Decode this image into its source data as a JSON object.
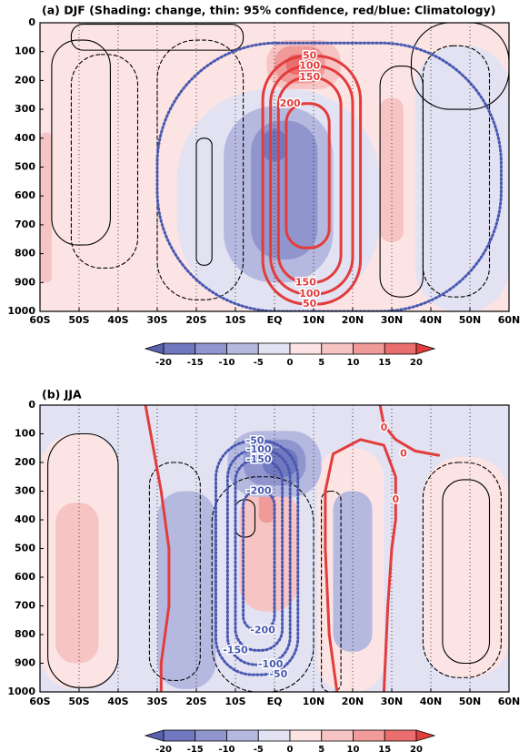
{
  "chart_data": [
    {
      "type": "contour",
      "title": "(a) DJF (Shading: change, thin: 95% confidence, red/blue: Climatology)",
      "xlim": [
        -60,
        60
      ],
      "xticks": [
        {
          "value": -60,
          "label": "60S"
        },
        {
          "value": -50,
          "label": "50S"
        },
        {
          "value": -40,
          "label": "40S"
        },
        {
          "value": -30,
          "label": "30S"
        },
        {
          "value": -20,
          "label": "20S"
        },
        {
          "value": -10,
          "label": "10S"
        },
        {
          "value": 0,
          "label": "EQ"
        },
        {
          "value": 10,
          "label": "10N"
        },
        {
          "value": 20,
          "label": "20N"
        },
        {
          "value": 30,
          "label": "30N"
        },
        {
          "value": 40,
          "label": "40N"
        },
        {
          "value": 50,
          "label": "50N"
        },
        {
          "value": 60,
          "label": "60N"
        }
      ],
      "ylim": [
        1000,
        0
      ],
      "yticks": [
        0,
        100,
        200,
        300,
        400,
        500,
        600,
        700,
        800,
        900,
        1000
      ],
      "grid": true,
      "colorbar": {
        "ticks": [
          -20,
          -15,
          -10,
          -5,
          0,
          5,
          10,
          15,
          20
        ],
        "colors": [
          "#5a62b0",
          "#7078c0",
          "#9096cd",
          "#b6b9df",
          "#e2e2f2",
          "#fce4e4",
          "#f7c4c4",
          "#f19a9a",
          "#eb6e6e",
          "#e23c3c"
        ]
      },
      "shading": [
        {
          "shape": "rect",
          "value": 2,
          "lat": [
            -60,
            60
          ],
          "p": [
            0,
            1000
          ]
        },
        {
          "shape": "blob",
          "value": -2,
          "lat": [
            -25,
            27
          ],
          "p": [
            230,
            1000
          ]
        },
        {
          "shape": "blob",
          "value": -2,
          "lat": [
            36,
            60
          ],
          "p": [
            80,
            1000
          ]
        },
        {
          "shape": "blob",
          "value": -7,
          "lat": [
            -13,
            15
          ],
          "p": [
            290,
            900
          ]
        },
        {
          "shape": "blob",
          "value": -12,
          "lat": [
            -6,
            11
          ],
          "p": [
            340,
            820
          ]
        },
        {
          "shape": "blob",
          "value": -17,
          "lat": [
            -3,
            3
          ],
          "p": [
            370,
            480
          ]
        },
        {
          "shape": "blob",
          "value": 7,
          "lat": [
            -60,
            -57
          ],
          "p": [
            380,
            900
          ]
        },
        {
          "shape": "blob",
          "value": 7,
          "lat": [
            27,
            33
          ],
          "p": [
            260,
            760
          ]
        },
        {
          "shape": "blob",
          "value": 7,
          "lat": [
            -2,
            17
          ],
          "p": [
            60,
            230
          ]
        },
        {
          "shape": "blob",
          "value": 12,
          "lat": [
            0,
            13
          ],
          "p": [
            80,
            210
          ]
        },
        {
          "shape": "blob",
          "value": 17,
          "lat": [
            3,
            10
          ],
          "p": [
            110,
            180
          ]
        }
      ],
      "confidence": [
        {
          "style": "solid",
          "shape": "loop",
          "lat": [
            -52,
            -8
          ],
          "p": [
            5,
            95
          ]
        },
        {
          "style": "solid",
          "shape": "loop",
          "lat": [
            -57,
            -42
          ],
          "p": [
            60,
            770
          ]
        },
        {
          "style": "dashed",
          "shape": "loop",
          "lat": [
            -52,
            -35
          ],
          "p": [
            110,
            850
          ]
        },
        {
          "style": "dashed",
          "shape": "loop",
          "lat": [
            -30,
            -8
          ],
          "p": [
            60,
            960
          ]
        },
        {
          "style": "solid",
          "shape": "loop",
          "lat": [
            -20,
            -16
          ],
          "p": [
            400,
            840
          ]
        },
        {
          "style": "solid",
          "shape": "loop",
          "lat": [
            35,
            60
          ],
          "p": [
            0,
            300
          ]
        },
        {
          "style": "dashed",
          "shape": "loop",
          "lat": [
            38,
            55
          ],
          "p": [
            80,
            950
          ]
        },
        {
          "style": "solid",
          "shape": "loop",
          "lat": [
            27,
            38
          ],
          "p": [
            150,
            950
          ]
        }
      ],
      "contours": [
        {
          "color": "#4858b0",
          "style": "dotted",
          "shape": "loop",
          "lat": [
            -30,
            58
          ],
          "p": [
            70,
            1000
          ],
          "labels": []
        },
        {
          "level": 50,
          "color": "#e23c3c",
          "style": "solid",
          "shape": "loop",
          "lat": [
            -3,
            22
          ],
          "p": [
            115,
            975
          ],
          "labels": [
            {
              "lat": 9,
              "p": 115
            },
            {
              "lat": 9,
              "p": 975
            }
          ]
        },
        {
          "level": 100,
          "color": "#e23c3c",
          "style": "solid",
          "shape": "loop",
          "lat": [
            -1,
            20
          ],
          "p": [
            150,
            940
          ],
          "labels": [
            {
              "lat": 9,
              "p": 150
            },
            {
              "lat": 9,
              "p": 940
            }
          ]
        },
        {
          "level": 150,
          "color": "#e23c3c",
          "style": "solid",
          "shape": "loop",
          "lat": [
            1,
            17
          ],
          "p": [
            190,
            900
          ],
          "labels": [
            {
              "lat": 9,
              "p": 190
            },
            {
              "lat": 8,
              "p": 900
            }
          ]
        },
        {
          "level": 200,
          "color": "#e23c3c",
          "style": "solid",
          "shape": "loop",
          "lat": [
            3,
            14
          ],
          "p": [
            280,
            780
          ],
          "labels": [
            {
              "lat": 4,
              "p": 280
            }
          ]
        }
      ]
    },
    {
      "type": "contour",
      "title": "(b) JJA",
      "xlim": [
        -60,
        60
      ],
      "xticks": [
        {
          "value": -60,
          "label": "60S"
        },
        {
          "value": -50,
          "label": "50S"
        },
        {
          "value": -40,
          "label": "40S"
        },
        {
          "value": -30,
          "label": "30S"
        },
        {
          "value": -20,
          "label": "20S"
        },
        {
          "value": -10,
          "label": "10S"
        },
        {
          "value": 0,
          "label": "EQ"
        },
        {
          "value": 10,
          "label": "10N"
        },
        {
          "value": 20,
          "label": "20N"
        },
        {
          "value": 30,
          "label": "30N"
        },
        {
          "value": 40,
          "label": "40N"
        },
        {
          "value": 50,
          "label": "50N"
        },
        {
          "value": 60,
          "label": "60N"
        }
      ],
      "ylim": [
        1000,
        0
      ],
      "yticks": [
        0,
        100,
        200,
        300,
        400,
        500,
        600,
        700,
        800,
        900,
        1000
      ],
      "grid": true,
      "colorbar": {
        "ticks": [
          -20,
          -15,
          -10,
          -5,
          0,
          5,
          10,
          15,
          20
        ],
        "colors": [
          "#5a62b0",
          "#7078c0",
          "#9096cd",
          "#b6b9df",
          "#e2e2f2",
          "#fce4e4",
          "#f7c4c4",
          "#f19a9a",
          "#eb6e6e",
          "#e23c3c"
        ]
      },
      "shading": [
        {
          "shape": "rect",
          "value": -2,
          "lat": [
            -60,
            60
          ],
          "p": [
            0,
            1000
          ]
        },
        {
          "shape": "blob",
          "value": 2,
          "lat": [
            -60,
            -40
          ],
          "p": [
            100,
            990
          ]
        },
        {
          "shape": "blob",
          "value": 2,
          "lat": [
            11,
            28
          ],
          "p": [
            150,
            1000
          ]
        },
        {
          "shape": "blob",
          "value": 2,
          "lat": [
            38,
            60
          ],
          "p": [
            180,
            950
          ]
        },
        {
          "shape": "blob",
          "value": 7,
          "lat": [
            -56,
            -45
          ],
          "p": [
            340,
            900
          ]
        },
        {
          "shape": "blob",
          "value": -7,
          "lat": [
            -30,
            -15
          ],
          "p": [
            300,
            990
          ]
        },
        {
          "shape": "blob",
          "value": -7,
          "lat": [
            15,
            25
          ],
          "p": [
            300,
            860
          ]
        },
        {
          "shape": "blob",
          "value": 7,
          "lat": [
            -9,
            6
          ],
          "p": [
            290,
            720
          ]
        },
        {
          "shape": "blob",
          "value": 12,
          "lat": [
            -4,
            0
          ],
          "p": [
            300,
            410
          ]
        },
        {
          "shape": "blob",
          "value": -7,
          "lat": [
            -12,
            12
          ],
          "p": [
            90,
            320
          ]
        },
        {
          "shape": "blob",
          "value": -12,
          "lat": [
            -8,
            8
          ],
          "p": [
            120,
            280
          ]
        },
        {
          "shape": "blob",
          "value": -17,
          "lat": [
            -3,
            6
          ],
          "p": [
            150,
            250
          ]
        }
      ],
      "confidence": [
        {
          "style": "solid",
          "shape": "loop",
          "lat": [
            -58,
            -40
          ],
          "p": [
            100,
            985
          ]
        },
        {
          "style": "dashed",
          "shape": "loop",
          "lat": [
            -32,
            -19
          ],
          "p": [
            200,
            960
          ]
        },
        {
          "style": "dashed",
          "shape": "loop",
          "lat": [
            -16,
            10
          ],
          "p": [
            250,
            1000
          ]
        },
        {
          "style": "solid",
          "shape": "loop",
          "lat": [
            -10,
            -5
          ],
          "p": [
            330,
            460
          ]
        },
        {
          "style": "dashed",
          "shape": "loop",
          "lat": [
            12,
            17
          ],
          "p": [
            300,
            1000
          ]
        },
        {
          "style": "dashed",
          "shape": "loop",
          "lat": [
            38,
            58
          ],
          "p": [
            200,
            950
          ]
        },
        {
          "style": "solid",
          "shape": "loop",
          "lat": [
            43,
            55
          ],
          "p": [
            260,
            900
          ]
        }
      ],
      "contours": [
        {
          "level": -50,
          "color": "#4858b0",
          "style": "dotted",
          "shape": "loop",
          "lat": [
            -15,
            6
          ],
          "p": [
            125,
            940
          ],
          "labels": [
            {
              "lat": -5,
              "p": 125
            },
            {
              "lat": 1,
              "p": 940
            }
          ]
        },
        {
          "level": -100,
          "color": "#4858b0",
          "style": "dotted",
          "shape": "loop",
          "lat": [
            -12,
            4
          ],
          "p": [
            155,
            905
          ],
          "labels": [
            {
              "lat": -4,
              "p": 155
            },
            {
              "lat": -1,
              "p": 905
            }
          ]
        },
        {
          "level": -150,
          "color": "#4858b0",
          "style": "dotted",
          "shape": "loop",
          "lat": [
            -10,
            2
          ],
          "p": [
            190,
            855
          ],
          "labels": [
            {
              "lat": -4,
              "p": 190
            },
            {
              "lat": -10,
              "p": 855
            }
          ]
        },
        {
          "level": -200,
          "color": "#4858b0",
          "style": "dotted",
          "shape": "loop",
          "lat": [
            -8,
            0
          ],
          "p": [
            300,
            785
          ],
          "labels": [
            {
              "lat": -4,
              "p": 300
            },
            {
              "lat": -3,
              "p": 785
            }
          ]
        },
        {
          "level": 0,
          "color": "#e23c3c",
          "style": "solid",
          "shape": "line",
          "lat": [
            -33,
            -31,
            -29,
            -27,
            -27,
            -29,
            -29
          ],
          "p": [
            0,
            150,
            300,
            500,
            700,
            900,
            1000
          ],
          "labels": []
        },
        {
          "level": 0,
          "color": "#e23c3c",
          "style": "solid",
          "shape": "line",
          "lat": [
            16,
            14,
            13,
            13,
            15,
            22,
            28,
            31,
            31,
            30,
            29,
            28
          ],
          "p": [
            1000,
            800,
            500,
            300,
            170,
            120,
            140,
            250,
            400,
            500,
            700,
            1000
          ],
          "labels": [
            {
              "lat": 31,
              "p": 330
            }
          ]
        },
        {
          "level": 0,
          "color": "#e23c3c",
          "style": "solid",
          "shape": "line",
          "lat": [
            27,
            28,
            31,
            36,
            42
          ],
          "p": [
            0,
            70,
            120,
            160,
            175
          ],
          "labels": [
            {
              "lat": 28,
              "p": 80
            },
            {
              "lat": 33,
              "p": 170
            }
          ]
        }
      ]
    }
  ]
}
